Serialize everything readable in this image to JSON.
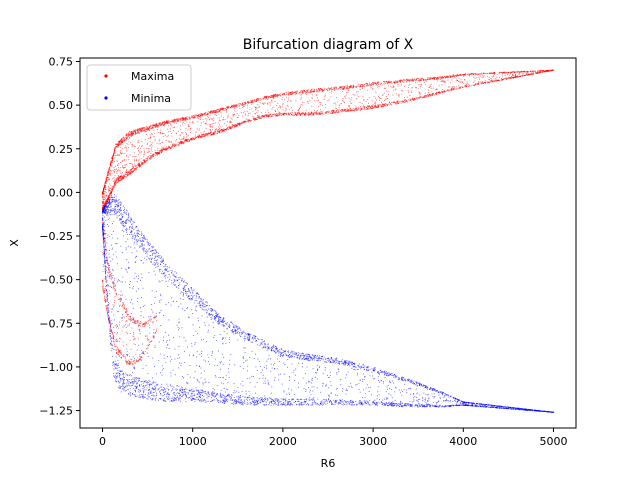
{
  "chart_data": {
    "type": "scatter",
    "title": "Bifurcation diagram of X",
    "xlabel": "R6",
    "ylabel": "X",
    "xlim": [
      -250,
      5250
    ],
    "ylim": [
      -1.35,
      0.77
    ],
    "xticks": [
      0,
      1000,
      2000,
      3000,
      4000,
      5000
    ],
    "xtick_labels": [
      "0",
      "1000",
      "2000",
      "3000",
      "4000",
      "5000"
    ],
    "yticks": [
      0.75,
      0.5,
      0.25,
      0.0,
      -0.25,
      -0.5,
      -0.75,
      -1.0,
      -1.25
    ],
    "ytick_labels": [
      "0.75",
      "0.50",
      "0.25",
      "0.00",
      "−0.25",
      "−0.50",
      "−0.75",
      "−1.00",
      "−1.25"
    ],
    "grid": false,
    "legend_position": "top-left",
    "series": [
      {
        "name": "Maxima",
        "color": "#ff0000",
        "marker": "point",
        "bands": [
          {
            "x": [
              0,
              60,
              150,
              300,
              500,
              700,
              1000,
              1300,
              1600,
              1800,
              2000,
              2300,
              2700,
              3000,
              3400,
              3700,
              4000,
              4500,
              5000
            ],
            "low": [
              -0.1,
              -0.05,
              0.05,
              0.1,
              0.18,
              0.24,
              0.3,
              0.34,
              0.4,
              0.43,
              0.44,
              0.44,
              0.46,
              0.48,
              0.52,
              0.56,
              0.6,
              0.65,
              0.7
            ],
            "high": [
              0.0,
              0.12,
              0.28,
              0.35,
              0.38,
              0.41,
              0.44,
              0.48,
              0.52,
              0.55,
              0.57,
              0.59,
              0.61,
              0.63,
              0.65,
              0.66,
              0.68,
              0.69,
              0.7
            ]
          },
          {
            "x": [
              0,
              60,
              150,
              300,
              450,
              600
            ],
            "low": [
              -0.55,
              -0.72,
              -0.92,
              -1.0,
              -0.95,
              -0.8
            ],
            "high": [
              -0.15,
              -0.4,
              -0.55,
              -0.7,
              -0.75,
              -0.7
            ]
          }
        ]
      },
      {
        "name": "Minima",
        "color": "#0000ff",
        "marker": "point",
        "bands": [
          {
            "x": [
              0,
              60,
              120,
              200,
              400,
              700,
              1000,
              1300,
              1600,
              1800,
              2000,
              2200,
              2600,
              3000,
              3400,
              3800,
              4000,
              4500,
              5000
            ],
            "low": [
              -0.2,
              -0.7,
              -1.05,
              -1.15,
              -1.18,
              -1.2,
              -1.2,
              -1.21,
              -1.22,
              -1.22,
              -1.22,
              -1.22,
              -1.22,
              -1.22,
              -1.23,
              -1.23,
              -1.22,
              -1.24,
              -1.26
            ],
            "high": [
              -0.1,
              -0.05,
              0.0,
              -0.05,
              -0.2,
              -0.4,
              -0.55,
              -0.7,
              -0.8,
              -0.85,
              -0.9,
              -0.92,
              -0.95,
              -1.0,
              -1.07,
              -1.15,
              -1.2,
              -1.23,
              -1.26
            ]
          }
        ]
      }
    ]
  }
}
